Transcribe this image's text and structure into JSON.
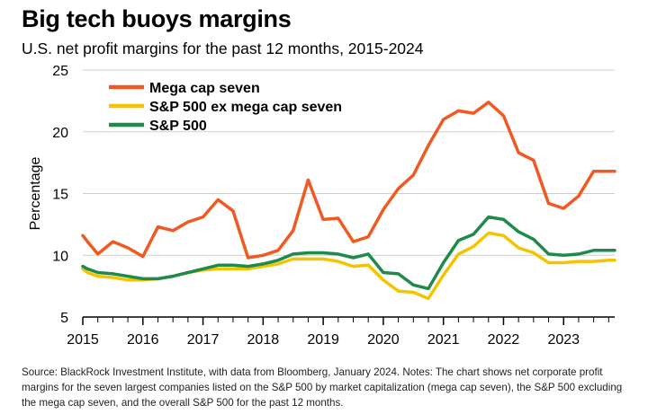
{
  "header": {
    "title": "Big tech buoys margins",
    "subtitle": "U.S. net profit margins for the past 12 months, 2015-2024"
  },
  "footer": {
    "source": "Source: BlackRock Investment Institute, with data from Bloomberg, January 2024. Notes: The chart shows net corporate profit margins for the seven largest companies listed on the S&P 500 by market capitalization (mega cap seven), the S&P 500 excluding the mega cap seven, and the overall S&P 500 for the past 12 months."
  },
  "chart_data": {
    "type": "line",
    "ylabel": "Percentage",
    "xlabel": "",
    "ylim": [
      5,
      25
    ],
    "xlim": [
      2015,
      2023.85
    ],
    "yticks": [
      5,
      10,
      15,
      20,
      25
    ],
    "xticks": [
      "2015",
      "2016",
      "2017",
      "2018",
      "2019",
      "2020",
      "2021",
      "2022",
      "2023"
    ],
    "grid": "horizontal",
    "legend_position": "top-left",
    "colors": {
      "Mega cap seven": "#f05a22",
      "S&P 500 ex mega cap seven": "#f5c400",
      "S&P 500": "#1f8a4c"
    },
    "x": [
      2015.0,
      2015.08,
      2015.25,
      2015.5,
      2015.75,
      2016.0,
      2016.25,
      2016.5,
      2016.75,
      2017.0,
      2017.25,
      2017.5,
      2017.75,
      2018.0,
      2018.25,
      2018.5,
      2018.75,
      2019.0,
      2019.25,
      2019.5,
      2019.75,
      2020.0,
      2020.25,
      2020.5,
      2020.75,
      2021.0,
      2021.25,
      2021.5,
      2021.75,
      2022.0,
      2022.25,
      2022.5,
      2022.75,
      2023.0,
      2023.25,
      2023.5,
      2023.75,
      2023.85
    ],
    "series": [
      {
        "name": "Mega cap seven",
        "values": [
          11.6,
          11.1,
          10.1,
          11.1,
          10.6,
          9.9,
          12.3,
          12.0,
          12.7,
          13.1,
          14.5,
          13.6,
          9.8,
          10.0,
          10.4,
          12.0,
          16.1,
          12.9,
          13.0,
          11.1,
          11.5,
          13.7,
          15.4,
          16.5,
          18.9,
          21.0,
          21.7,
          21.5,
          22.4,
          21.3,
          18.3,
          17.7,
          14.2,
          13.8,
          14.8,
          16.8,
          16.8,
          16.8
        ]
      },
      {
        "name": "S&P 500 ex mega cap seven",
        "values": [
          8.9,
          8.6,
          8.3,
          8.2,
          8.0,
          8.0,
          8.1,
          8.3,
          8.6,
          8.8,
          8.9,
          8.9,
          8.9,
          9.1,
          9.3,
          9.7,
          9.7,
          9.7,
          9.5,
          9.1,
          9.2,
          8.0,
          7.1,
          7.0,
          6.5,
          8.4,
          10.1,
          10.7,
          11.8,
          11.6,
          10.6,
          10.2,
          9.4,
          9.4,
          9.5,
          9.5,
          9.6,
          9.6
        ]
      },
      {
        "name": "S&P 500",
        "values": [
          9.1,
          8.9,
          8.6,
          8.5,
          8.3,
          8.1,
          8.1,
          8.3,
          8.6,
          8.9,
          9.2,
          9.2,
          9.1,
          9.3,
          9.6,
          10.1,
          10.2,
          10.2,
          10.1,
          9.8,
          10.1,
          8.6,
          8.5,
          7.6,
          7.3,
          9.4,
          11.2,
          11.7,
          13.1,
          12.9,
          11.9,
          11.3,
          10.1,
          10.0,
          10.1,
          10.4,
          10.4,
          10.4
        ]
      }
    ]
  }
}
